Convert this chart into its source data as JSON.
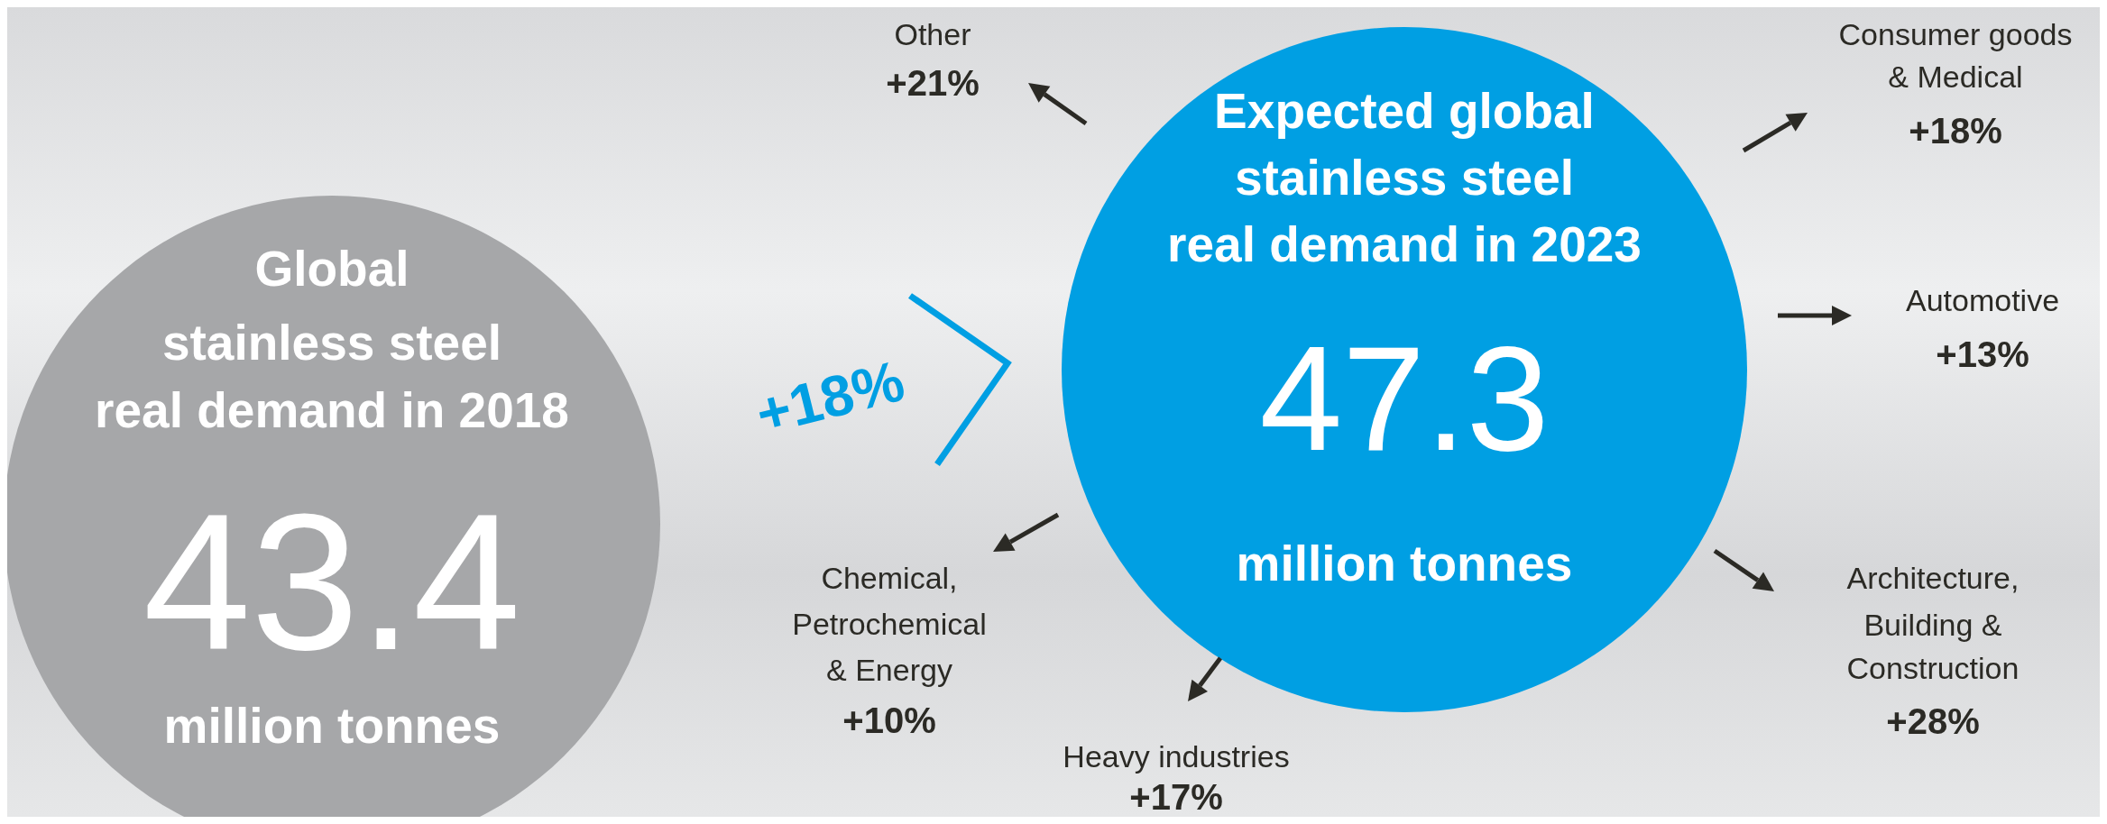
{
  "chart_data": {
    "type": "other",
    "categories": [
      "Global\nstainless steel\nreal demand in 2018",
      "Expected global\nstainless steel\nreal demand in 2023"
    ],
    "values": [
      43.4,
      47.3
    ],
    "colors": [
      "#a6a7a9",
      "#009fe3"
    ],
    "data_labels": true,
    "ylabel": "million tonnes",
    "annotations": [
      "+18%",
      "Other\n+21%",
      "Consumer goods\n& Medical\n+18%",
      "Automotive\n+13%",
      "Architecture,\nBuilding &\nConstruction\n+28%",
      "Heavy industries\n+17%",
      "Chemical,\nPetrochemical\n& Energy\n+10%"
    ]
  }
}
